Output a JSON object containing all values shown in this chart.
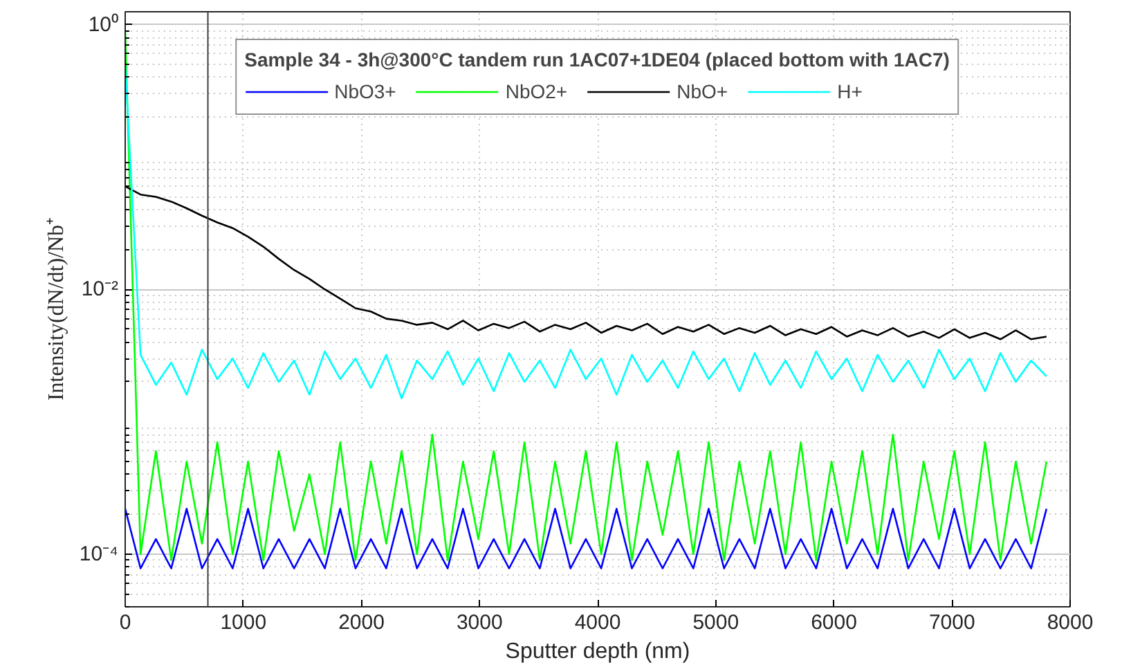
{
  "chart_data": {
    "type": "line",
    "legend_title": "Sample 34 - 3h@300°C tandem run 1AC07+1DE04 (placed bottom with 1AC7)",
    "xlabel": "Sputter depth (nm)",
    "ylabel": "Intensity(dN/dt)/Nb⁺",
    "x": [
      0,
      130,
      260,
      390,
      520,
      650,
      780,
      910,
      1040,
      1170,
      1300,
      1430,
      1560,
      1690,
      1820,
      1950,
      2080,
      2210,
      2340,
      2470,
      2600,
      2730,
      2860,
      2990,
      3120,
      3250,
      3380,
      3510,
      3640,
      3770,
      3900,
      4030,
      4160,
      4290,
      4420,
      4550,
      4680,
      4810,
      4940,
      5070,
      5200,
      5330,
      5460,
      5590,
      5720,
      5850,
      5980,
      6110,
      6240,
      6370,
      6500,
      6630,
      6760,
      6890,
      7020,
      7150,
      7280,
      7410,
      7540,
      7670,
      7800
    ],
    "series": [
      {
        "name": "NbO3+",
        "color": "#0000ff",
        "values": [
          0.00022,
          7.8e-05,
          0.00013,
          7.8e-05,
          0.00022,
          7.8e-05,
          0.00013,
          7.8e-05,
          0.00022,
          7.8e-05,
          0.00013,
          7.8e-05,
          0.00013,
          7.8e-05,
          0.00022,
          7.8e-05,
          0.00013,
          7.8e-05,
          0.00022,
          7.8e-05,
          0.00013,
          7.8e-05,
          0.00022,
          7.8e-05,
          0.00013,
          7.8e-05,
          0.00013,
          7.8e-05,
          0.00022,
          7.8e-05,
          0.00013,
          7.8e-05,
          0.00022,
          7.8e-05,
          0.00013,
          7.8e-05,
          0.00013,
          7.8e-05,
          0.00022,
          7.8e-05,
          0.00013,
          7.8e-05,
          0.00022,
          7.8e-05,
          0.00013,
          7.8e-05,
          0.00022,
          7.8e-05,
          0.00013,
          7.8e-05,
          0.00022,
          7.8e-05,
          0.00013,
          7.8e-05,
          0.00022,
          7.8e-05,
          0.00013,
          7.8e-05,
          0.00013,
          7.8e-05,
          0.00022
        ]
      },
      {
        "name": "NbO2+",
        "color": "#00ff00",
        "values": [
          0.9,
          0.0001,
          0.0006,
          9e-05,
          0.0005,
          0.00012,
          0.0007,
          0.0001,
          0.0005,
          9e-05,
          0.0006,
          0.00015,
          0.0004,
          0.0001,
          0.0007,
          9e-05,
          0.0005,
          0.00012,
          0.0006,
          0.0001,
          0.0008,
          9e-05,
          0.0005,
          0.00013,
          0.0006,
          0.0001,
          0.0007,
          9e-05,
          0.0005,
          0.00012,
          0.0006,
          0.0001,
          0.0007,
          9e-05,
          0.0005,
          0.00014,
          0.0006,
          0.0001,
          0.0007,
          9e-05,
          0.0005,
          0.00012,
          0.0006,
          0.0001,
          0.0007,
          9e-05,
          0.0005,
          0.00012,
          0.0006,
          0.0001,
          0.0008,
          9e-05,
          0.0005,
          0.00013,
          0.0006,
          0.0001,
          0.0007,
          9e-05,
          0.0005,
          0.00012,
          0.0005
        ]
      },
      {
        "name": "NbO+",
        "color": "#000000",
        "values": [
          0.06,
          0.052,
          0.05,
          0.046,
          0.041,
          0.036,
          0.032,
          0.029,
          0.025,
          0.021,
          0.017,
          0.014,
          0.012,
          0.01,
          0.0085,
          0.0072,
          0.0068,
          0.006,
          0.0058,
          0.0054,
          0.0056,
          0.005,
          0.0058,
          0.0049,
          0.0055,
          0.0051,
          0.0057,
          0.0048,
          0.0054,
          0.005,
          0.0056,
          0.0047,
          0.0053,
          0.0049,
          0.0055,
          0.0046,
          0.0052,
          0.0048,
          0.0054,
          0.0046,
          0.0051,
          0.0047,
          0.0053,
          0.0045,
          0.005,
          0.0046,
          0.0052,
          0.0044,
          0.0049,
          0.0045,
          0.0051,
          0.0044,
          0.0048,
          0.0043,
          0.005,
          0.0043,
          0.0047,
          0.0042,
          0.0049,
          0.0042,
          0.0044
        ]
      },
      {
        "name": "H+",
        "color": "#00ffff",
        "values": [
          0.5,
          0.0032,
          0.0019,
          0.0028,
          0.0016,
          0.0035,
          0.0021,
          0.003,
          0.0018,
          0.0033,
          0.002,
          0.0029,
          0.0016,
          0.0034,
          0.0021,
          0.003,
          0.0018,
          0.0032,
          0.0015,
          0.0029,
          0.0021,
          0.0034,
          0.0019,
          0.003,
          0.0017,
          0.0033,
          0.002,
          0.0029,
          0.0018,
          0.0035,
          0.0021,
          0.003,
          0.0016,
          0.0032,
          0.002,
          0.0029,
          0.0018,
          0.0034,
          0.0021,
          0.003,
          0.0017,
          0.0033,
          0.0019,
          0.0029,
          0.0018,
          0.0034,
          0.0021,
          0.003,
          0.0017,
          0.0032,
          0.002,
          0.0029,
          0.0018,
          0.0035,
          0.0021,
          0.003,
          0.0017,
          0.0033,
          0.002,
          0.0029,
          0.0022
        ]
      }
    ],
    "xlim": [
      0,
      8000
    ],
    "xticks": [
      0,
      1000,
      2000,
      3000,
      4000,
      5000,
      6000,
      7000,
      8000
    ],
    "ylim": [
      4e-05,
      1.25
    ],
    "log": true,
    "yticks": [
      {
        "value": 0.0001,
        "label": "10⁻⁴"
      },
      {
        "value": 0.01,
        "label": "10⁻²"
      },
      {
        "value": 1,
        "label": "10⁰"
      }
    ],
    "ref_lines": [
      {
        "axis": "x",
        "value": 700,
        "color": "#404040"
      }
    ],
    "grid": true,
    "legend": "top",
    "marker": "none",
    "line_style": "solid"
  }
}
